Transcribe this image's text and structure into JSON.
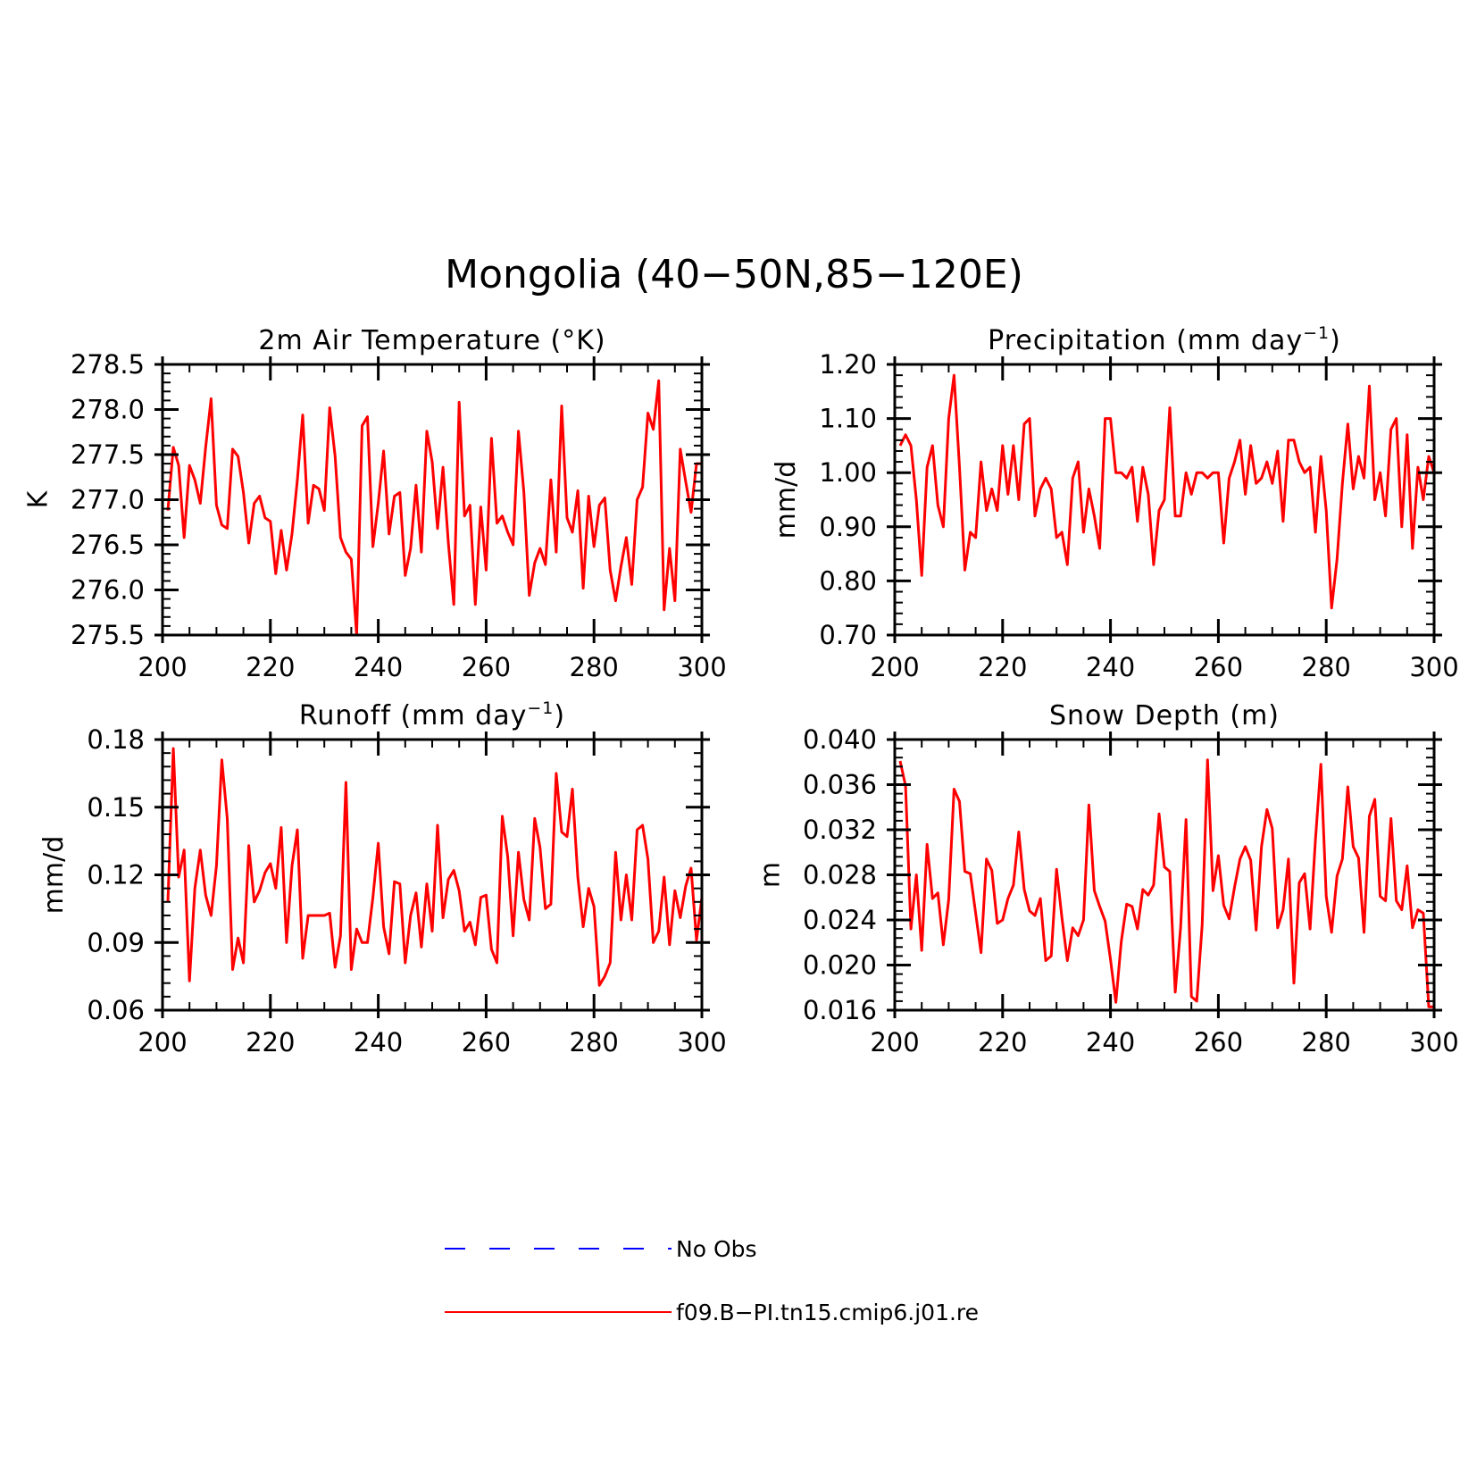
{
  "figure_title": "Mongolia (40−50N,85−120E)",
  "legend": {
    "entries": [
      {
        "label": "No Obs",
        "color": "#0000ff",
        "style": "dashed"
      },
      {
        "label": "f09.B−PI.tn15.cmip6.j01.re",
        "color": "#ff0000",
        "style": "solid"
      }
    ]
  },
  "chart_data": [
    {
      "type": "line",
      "title": "2m Air Temperature (°K)",
      "title_parts": [
        {
          "text": "2m Air Temperature (°K)"
        }
      ],
      "xlabel": "",
      "ylabel": "K",
      "xlim": [
        200,
        300
      ],
      "ylim": [
        275.5,
        278.5
      ],
      "xticks": [
        200,
        220,
        240,
        260,
        280,
        300
      ],
      "xtick_labels": [
        "200",
        "220",
        "240",
        "260",
        "280",
        "300"
      ],
      "yticks": [
        275.5,
        276.0,
        276.5,
        277.0,
        277.5,
        278.0,
        278.5
      ],
      "ytick_labels": [
        "275.5",
        "276.0",
        "276.5",
        "277.0",
        "277.5",
        "278.0",
        "278.5"
      ],
      "grid": false,
      "series": [
        {
          "name": "f09.B−PI.tn15.cmip6.j01.re",
          "color": "#ff0000",
          "x": [
            201,
            202,
            203,
            204,
            205,
            206,
            207,
            208,
            209,
            210,
            211,
            212,
            213,
            214,
            215,
            216,
            217,
            218,
            219,
            220,
            221,
            222,
            223,
            224,
            225,
            226,
            227,
            228,
            229,
            230,
            231,
            232,
            233,
            234,
            235,
            236,
            237,
            238,
            239,
            240,
            241,
            242,
            243,
            244,
            245,
            246,
            247,
            248,
            249,
            250,
            251,
            252,
            253,
            254,
            255,
            256,
            257,
            258,
            259,
            260,
            261,
            262,
            263,
            264,
            265,
            266,
            267,
            268,
            269,
            270,
            271,
            272,
            273,
            274,
            275,
            276,
            277,
            278,
            279,
            280,
            281,
            282,
            283,
            284,
            285,
            286,
            287,
            288,
            289,
            290,
            291,
            292,
            293,
            294,
            295,
            296,
            297,
            298,
            299,
            300
          ],
          "y": [
            276.88,
            277.58,
            277.38,
            276.58,
            277.38,
            277.22,
            276.96,
            277.58,
            278.12,
            276.94,
            276.72,
            276.68,
            277.56,
            277.48,
            277.08,
            276.52,
            276.96,
            277.04,
            276.8,
            276.76,
            276.18,
            276.66,
            276.22,
            276.62,
            277.22,
            277.94,
            276.74,
            277.16,
            277.12,
            276.88,
            278.02,
            277.48,
            276.58,
            276.42,
            276.34,
            275.5,
            277.82,
            277.92,
            276.48,
            276.96,
            277.54,
            276.62,
            277.04,
            277.08,
            276.16,
            276.46,
            277.16,
            276.42,
            277.76,
            277.42,
            276.68,
            277.36,
            276.52,
            275.84,
            278.08,
            276.82,
            276.94,
            275.84,
            276.92,
            276.22,
            277.68,
            276.74,
            276.82,
            276.64,
            276.5,
            277.76,
            277.08,
            275.94,
            276.3,
            276.46,
            276.28,
            277.22,
            276.42,
            278.04,
            276.8,
            276.64,
            277.1,
            276.02,
            277.04,
            276.48,
            276.94,
            277.02,
            276.22,
            275.88,
            276.26,
            276.58,
            276.06,
            277.0,
            277.14,
            277.96,
            277.78,
            278.32,
            275.78,
            276.46,
            275.88,
            277.56,
            277.2,
            276.86,
            277.4,
            277.4
          ]
        }
      ]
    },
    {
      "type": "line",
      "title": "Precipitation (mm day−1)",
      "title_parts": [
        {
          "text": "Precipitation (mm day"
        },
        {
          "text": "−1",
          "sup": true
        },
        {
          "text": ")"
        }
      ],
      "xlabel": "",
      "ylabel": "mm/d",
      "xlim": [
        200,
        300
      ],
      "ylim": [
        0.7,
        1.2
      ],
      "xticks": [
        200,
        220,
        240,
        260,
        280,
        300
      ],
      "xtick_labels": [
        "200",
        "220",
        "240",
        "260",
        "280",
        "300"
      ],
      "yticks": [
        0.7,
        0.8,
        0.9,
        1.0,
        1.1,
        1.2
      ],
      "ytick_labels": [
        "0.70",
        "0.80",
        "0.90",
        "1.00",
        "1.10",
        "1.20"
      ],
      "grid": false,
      "series": [
        {
          "name": "f09.B−PI.tn15.cmip6.j01.re",
          "color": "#ff0000",
          "x": [
            201,
            202,
            203,
            204,
            205,
            206,
            207,
            208,
            209,
            210,
            211,
            212,
            213,
            214,
            215,
            216,
            217,
            218,
            219,
            220,
            221,
            222,
            223,
            224,
            225,
            226,
            227,
            228,
            229,
            230,
            231,
            232,
            233,
            234,
            235,
            236,
            237,
            238,
            239,
            240,
            241,
            242,
            243,
            244,
            245,
            246,
            247,
            248,
            249,
            250,
            251,
            252,
            253,
            254,
            255,
            256,
            257,
            258,
            259,
            260,
            261,
            262,
            263,
            264,
            265,
            266,
            267,
            268,
            269,
            270,
            271,
            272,
            273,
            274,
            275,
            276,
            277,
            278,
            279,
            280,
            281,
            282,
            283,
            284,
            285,
            286,
            287,
            288,
            289,
            290,
            291,
            292,
            293,
            294,
            295,
            296,
            297,
            298,
            299,
            300
          ],
          "y": [
            1.05,
            1.07,
            1.05,
            0.95,
            0.81,
            1.01,
            1.05,
            0.94,
            0.9,
            1.1,
            1.18,
            1.01,
            0.82,
            0.89,
            0.88,
            1.02,
            0.93,
            0.97,
            0.93,
            1.05,
            0.96,
            1.05,
            0.95,
            1.09,
            1.1,
            0.92,
            0.97,
            0.99,
            0.97,
            0.88,
            0.89,
            0.83,
            0.99,
            1.02,
            0.89,
            0.97,
            0.92,
            0.86,
            1.1,
            1.1,
            1.0,
            1.0,
            0.99,
            1.01,
            0.91,
            1.01,
            0.96,
            0.83,
            0.93,
            0.95,
            1.12,
            0.92,
            0.92,
            1.0,
            0.96,
            1.0,
            1.0,
            0.99,
            1.0,
            1.0,
            0.87,
            0.99,
            1.02,
            1.06,
            0.96,
            1.05,
            0.98,
            0.99,
            1.02,
            0.98,
            1.04,
            0.91,
            1.06,
            1.06,
            1.02,
            1.0,
            1.01,
            0.89,
            1.03,
            0.93,
            0.75,
            0.84,
            0.98,
            1.09,
            0.97,
            1.03,
            0.99,
            1.16,
            0.95,
            1.0,
            0.92,
            1.08,
            1.1,
            0.9,
            1.07,
            0.86,
            1.01,
            0.95,
            1.03,
            1.0
          ]
        }
      ]
    },
    {
      "type": "line",
      "title": "Runoff (mm day−1)",
      "title_parts": [
        {
          "text": "Runoff (mm day"
        },
        {
          "text": "−1",
          "sup": true
        },
        {
          "text": ")"
        }
      ],
      "xlabel": "",
      "ylabel": "mm/d",
      "xlim": [
        200,
        300
      ],
      "ylim": [
        0.06,
        0.18
      ],
      "xticks": [
        200,
        220,
        240,
        260,
        280,
        300
      ],
      "xtick_labels": [
        "200",
        "220",
        "240",
        "260",
        "280",
        "300"
      ],
      "yticks": [
        0.06,
        0.09,
        0.12,
        0.15,
        0.18
      ],
      "ytick_labels": [
        "0.06",
        "0.09",
        "0.12",
        "0.15",
        "0.18"
      ],
      "grid": false,
      "series": [
        {
          "name": "f09.B−PI.tn15.cmip6.j01.re",
          "color": "#ff0000",
          "x": [
            201,
            202,
            203,
            204,
            205,
            206,
            207,
            208,
            209,
            210,
            211,
            212,
            213,
            214,
            215,
            216,
            217,
            218,
            219,
            220,
            221,
            222,
            223,
            224,
            225,
            226,
            227,
            228,
            229,
            230,
            231,
            232,
            233,
            234,
            235,
            236,
            237,
            238,
            239,
            240,
            241,
            242,
            243,
            244,
            245,
            246,
            247,
            248,
            249,
            250,
            251,
            252,
            253,
            254,
            255,
            256,
            257,
            258,
            259,
            260,
            261,
            262,
            263,
            264,
            265,
            266,
            267,
            268,
            269,
            270,
            271,
            272,
            273,
            274,
            275,
            276,
            277,
            278,
            279,
            280,
            281,
            282,
            283,
            284,
            285,
            286,
            287,
            288,
            289,
            290,
            291,
            292,
            293,
            294,
            295,
            296,
            297,
            298,
            299,
            300
          ],
          "y": [
            0.108,
            0.176,
            0.119,
            0.131,
            0.073,
            0.114,
            0.131,
            0.111,
            0.102,
            0.124,
            0.171,
            0.145,
            0.078,
            0.092,
            0.081,
            0.133,
            0.108,
            0.113,
            0.121,
            0.125,
            0.114,
            0.141,
            0.09,
            0.124,
            0.14,
            0.083,
            0.102,
            0.102,
            0.102,
            0.102,
            0.103,
            0.079,
            0.093,
            0.161,
            0.078,
            0.096,
            0.09,
            0.09,
            0.11,
            0.134,
            0.097,
            0.085,
            0.117,
            0.116,
            0.081,
            0.102,
            0.112,
            0.088,
            0.116,
            0.095,
            0.142,
            0.101,
            0.118,
            0.122,
            0.113,
            0.095,
            0.099,
            0.089,
            0.11,
            0.111,
            0.087,
            0.081,
            0.146,
            0.128,
            0.093,
            0.13,
            0.109,
            0.1,
            0.145,
            0.132,
            0.105,
            0.107,
            0.165,
            0.139,
            0.137,
            0.158,
            0.119,
            0.097,
            0.114,
            0.106,
            0.071,
            0.075,
            0.081,
            0.13,
            0.1,
            0.12,
            0.1,
            0.14,
            0.142,
            0.127,
            0.09,
            0.095,
            0.119,
            0.089,
            0.113,
            0.101,
            0.115,
            0.123,
            0.091,
            0.11
          ]
        }
      ]
    },
    {
      "type": "line",
      "title": "Snow Depth (m)",
      "title_parts": [
        {
          "text": "Snow Depth (m)"
        }
      ],
      "xlabel": "",
      "ylabel": "m",
      "xlim": [
        200,
        300
      ],
      "ylim": [
        0.016,
        0.04
      ],
      "xticks": [
        200,
        220,
        240,
        260,
        280,
        300
      ],
      "xtick_labels": [
        "200",
        "220",
        "240",
        "260",
        "280",
        "300"
      ],
      "yticks": [
        0.016,
        0.02,
        0.024,
        0.028,
        0.032,
        0.036,
        0.04
      ],
      "ytick_labels": [
        "0.016",
        "0.020",
        "0.024",
        "0.028",
        "0.032",
        "0.036",
        "0.040"
      ],
      "grid": false,
      "series": [
        {
          "name": "f09.B−PI.tn15.cmip6.j01.re",
          "color": "#ff0000",
          "x": [
            201,
            202,
            203,
            204,
            205,
            206,
            207,
            208,
            209,
            210,
            211,
            212,
            213,
            214,
            215,
            216,
            217,
            218,
            219,
            220,
            221,
            222,
            223,
            224,
            225,
            226,
            227,
            228,
            229,
            230,
            231,
            232,
            233,
            234,
            235,
            236,
            237,
            238,
            239,
            240,
            241,
            242,
            243,
            244,
            245,
            246,
            247,
            248,
            249,
            250,
            251,
            252,
            253,
            254,
            255,
            256,
            257,
            258,
            259,
            260,
            261,
            262,
            263,
            264,
            265,
            266,
            267,
            268,
            269,
            270,
            271,
            272,
            273,
            274,
            275,
            276,
            277,
            278,
            279,
            280,
            281,
            282,
            283,
            284,
            285,
            286,
            287,
            288,
            289,
            290,
            291,
            292,
            293,
            294,
            295,
            296,
            297,
            298,
            299,
            300
          ],
          "y": [
            0.0381,
            0.0359,
            0.0232,
            0.028,
            0.0213,
            0.0307,
            0.0259,
            0.0264,
            0.0218,
            0.0258,
            0.0356,
            0.0345,
            0.0283,
            0.0281,
            0.0246,
            0.0211,
            0.0294,
            0.0284,
            0.0237,
            0.024,
            0.0259,
            0.0271,
            0.0318,
            0.0267,
            0.0248,
            0.0244,
            0.0259,
            0.0204,
            0.0208,
            0.0285,
            0.0242,
            0.0204,
            0.0233,
            0.0226,
            0.024,
            0.0342,
            0.0266,
            0.0252,
            0.0239,
            0.0205,
            0.0167,
            0.0221,
            0.0254,
            0.0252,
            0.0232,
            0.0267,
            0.0262,
            0.0271,
            0.0334,
            0.0287,
            0.0283,
            0.0176,
            0.0233,
            0.0329,
            0.0172,
            0.0168,
            0.0236,
            0.0382,
            0.0266,
            0.0297,
            0.0253,
            0.0241,
            0.0269,
            0.0294,
            0.0305,
            0.0293,
            0.0231,
            0.0305,
            0.0338,
            0.0321,
            0.0233,
            0.0249,
            0.0294,
            0.0184,
            0.0273,
            0.0281,
            0.0232,
            0.0311,
            0.0378,
            0.0261,
            0.0229,
            0.0279,
            0.0294,
            0.0358,
            0.0305,
            0.0295,
            0.0229,
            0.0332,
            0.0347,
            0.0261,
            0.0257,
            0.033,
            0.0257,
            0.0249,
            0.0288,
            0.0233,
            0.0249,
            0.0246,
            0.0163,
            0.0163
          ]
        }
      ]
    }
  ]
}
